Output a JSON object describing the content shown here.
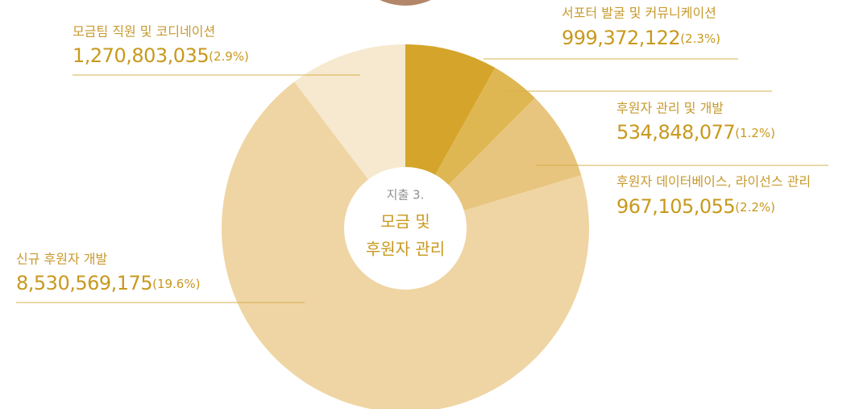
{
  "chart_data": {
    "type": "pie",
    "subtitle": "지출 3.",
    "title": [
      "모금 및",
      "후원자 관리"
    ],
    "categories": [
      "서포터 발굴 및 커뮤니케이션",
      "후원자 관리 및 개발",
      "후원자 데이터베이스, 라이선스 관리",
      "신규 후원자 개발",
      "모금팀 직원 및 코디네이션"
    ],
    "values": [
      999372122,
      534848077,
      967105055,
      8530569175,
      1270803035
    ],
    "value_labels": [
      "999,372,122",
      "534,848,077",
      "967,105,055",
      "8,530,569,175",
      "1,270,803,035"
    ],
    "share_labels": [
      "(2.3%)",
      "(1.2%)",
      "(2.2%)",
      "(19.6%)",
      "(2.9%)"
    ],
    "colors": [
      "#d4a52a",
      "#dfb752",
      "#e8c57e",
      "#efd5a3",
      "#f6e9cf"
    ]
  }
}
